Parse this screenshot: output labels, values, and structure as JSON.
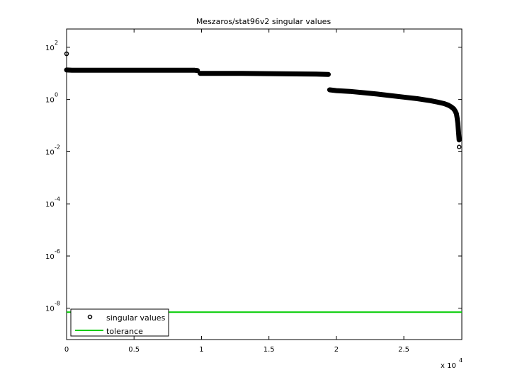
{
  "chart_data": {
    "type": "scatter",
    "title": "Meszaros/stat96v2 singular values",
    "xlabel": "",
    "ylabel": "",
    "x_scale_label": {
      "base": "x 10",
      "exp": "4"
    },
    "xlim": [
      0,
      29300
    ],
    "ylim_log10": [
      -9.2,
      2.7
    ],
    "y_scale": "log",
    "x_ticks": [
      {
        "value": 0,
        "label": "0"
      },
      {
        "value": 5000,
        "label": "0.5"
      },
      {
        "value": 10000,
        "label": "1"
      },
      {
        "value": 15000,
        "label": "1.5"
      },
      {
        "value": 20000,
        "label": "2"
      },
      {
        "value": 25000,
        "label": "2.5"
      }
    ],
    "y_ticks": [
      {
        "log10": 2,
        "base": "10",
        "exp": "2"
      },
      {
        "log10": 0,
        "base": "10",
        "exp": "0"
      },
      {
        "log10": -2,
        "base": "10",
        "exp": "-2"
      },
      {
        "log10": -4,
        "base": "10",
        "exp": "-4"
      },
      {
        "log10": -6,
        "base": "10",
        "exp": "-6"
      },
      {
        "log10": -8,
        "base": "10",
        "exp": "-8"
      }
    ],
    "series": [
      {
        "name": "singular values",
        "color": "#000000",
        "marker": "circle",
        "segments": [
          {
            "x": [
              0,
              400,
              1500,
              3000,
              5000,
              7000,
              8500,
              9500,
              9700
            ],
            "log10y": [
              1.13,
              1.12,
              1.12,
              1.12,
              1.12,
              1.12,
              1.12,
              1.12,
              1.11
            ]
          },
          {
            "x": [
              9900,
              11000,
              13000,
              15000,
              17000,
              18500,
              19400
            ],
            "log10y": [
              1.0,
              1.0,
              1.0,
              0.99,
              0.98,
              0.97,
              0.96
            ]
          },
          {
            "x": [
              19500,
              20000,
              21000,
              22000,
              23000,
              24000,
              25000,
              26000,
              27000,
              27500,
              28000,
              28300,
              28500,
              28700,
              28800,
              28900,
              28950,
              29000,
              29050,
              29100
            ],
            "log10y": [
              0.37,
              0.34,
              0.31,
              0.26,
              0.21,
              0.15,
              0.09,
              0.03,
              -0.05,
              -0.1,
              -0.16,
              -0.22,
              -0.28,
              -0.36,
              -0.44,
              -0.55,
              -0.7,
              -0.9,
              -1.2,
              -1.55
            ]
          }
        ],
        "outliers": [
          {
            "x": 0,
            "log10y": 1.75
          },
          {
            "x": 29100,
            "log10y": -1.82
          }
        ]
      },
      {
        "name": "tolerance",
        "color": "#00cc00",
        "type": "hline",
        "log10y": -8.15
      }
    ],
    "legend": {
      "placement": "bottom-left",
      "entries": [
        "singular values",
        "tolerance"
      ]
    },
    "grid": false
  }
}
